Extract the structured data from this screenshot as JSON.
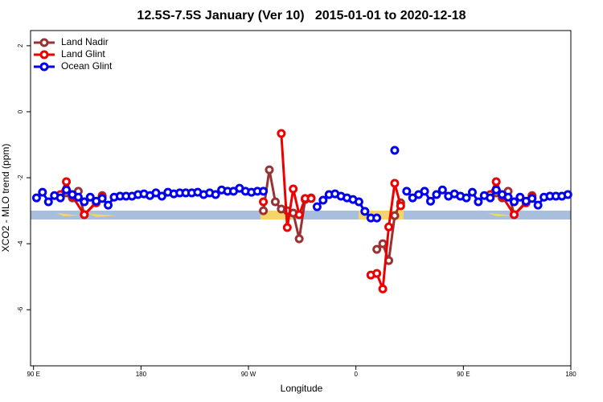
{
  "chart_data": {
    "type": "line",
    "title": "12.5S-7.5S January (Ver 10)   2015-01-01 to 2020-12-18",
    "x_label": "Longitude",
    "y_label": "XCO2 - MLO trend (ppm)",
    "xlim": [
      87.5,
      540
    ],
    "ylim": [
      -7.7,
      2.46
    ],
    "xticks": [
      {
        "value": 90,
        "label": "90 E"
      },
      {
        "value": 180,
        "label": "180"
      },
      {
        "value": 270,
        "label": "90 W"
      },
      {
        "value": 360,
        "label": "0"
      },
      {
        "value": 450,
        "label": "90 E"
      },
      {
        "value": 540,
        "label": "180"
      }
    ],
    "yticks": [
      2,
      0,
      -2,
      -4,
      -6
    ],
    "legend": "topleft",
    "series": [
      {
        "name": "Land Nadir",
        "color": "#993333",
        "x": [
          117.5,
          122.5,
          127.5,
          132.5,
          147.5,
          152.5,
          282.5,
          287.5,
          292.5,
          297.5,
          302.5,
          307.5,
          312.5,
          317.5,
          322.5,
          327.5,
          377.5,
          382.5,
          387.5,
          392.5,
          397.5,
          402.5,
          477.5,
          482.5,
          487.5,
          492.5,
          507.5
        ],
        "values": [
          -2.46,
          -2.61,
          -2.41,
          -3.12,
          -2.54,
          null,
          -3.0,
          -1.76,
          -2.73,
          -2.95,
          -3.0,
          -3.07,
          -3.85,
          -2.66,
          -2.61,
          null,
          -4.17,
          -4.0,
          -4.51,
          -3.15,
          -2.76,
          null,
          -2.46,
          -2.61,
          -2.41,
          -3.12,
          -2.54
        ]
      },
      {
        "name": "Land Glint",
        "color": "#ee0000",
        "x": [
          112.5,
          117.5,
          122.5,
          132.5,
          142.5,
          147.5,
          152.5,
          282.5,
          287.5,
          297.5,
          302.5,
          307.5,
          312.5,
          317.5,
          322.5,
          327.5,
          372.5,
          377.5,
          382.5,
          387.5,
          392.5,
          397.5,
          402.5,
          472.5,
          477.5,
          482.5,
          492.5,
          502.5,
          507.5
        ],
        "values": [
          -2.51,
          -2.12,
          -2.56,
          -3.12,
          -2.76,
          -2.59,
          null,
          -2.73,
          null,
          -0.66,
          -3.51,
          -2.34,
          -3.12,
          -2.63,
          -2.63,
          null,
          -4.95,
          -4.9,
          -5.37,
          -3.49,
          -2.17,
          -2.85,
          null,
          -2.51,
          -2.12,
          -2.56,
          -3.12,
          -2.76,
          -2.59
        ]
      },
      {
        "name": "Ocean Glint",
        "color": "#0000ee",
        "x": [
          92.5,
          97.5,
          102.5,
          107.5,
          112.5,
          117.5,
          122.5,
          127.5,
          132.5,
          137.5,
          142.5,
          147.5,
          152.5,
          157.5,
          162.5,
          167.5,
          172.5,
          177.5,
          182.5,
          187.5,
          192.5,
          197.5,
          202.5,
          207.5,
          212.5,
          217.5,
          222.5,
          227.5,
          232.5,
          237.5,
          242.5,
          247.5,
          252.5,
          257.5,
          262.5,
          267.5,
          272.5,
          277.5,
          282.5,
          287.5,
          327.5,
          332.5,
          337.5,
          342.5,
          347.5,
          352.5,
          357.5,
          362.5,
          367.5,
          372.5,
          377.5,
          387.5,
          392.5,
          397.5,
          402.5,
          407.5,
          412.5,
          417.5,
          422.5,
          427.5,
          432.5,
          437.5,
          442.5,
          447.5,
          452.5,
          457.5,
          462.5,
          467.5,
          472.5,
          477.5,
          482.5,
          487.5,
          492.5,
          497.5,
          502.5,
          507.5,
          512.5,
          517.5,
          522.5,
          527.5,
          532.5,
          537.5
        ],
        "values": [
          -2.61,
          -2.44,
          -2.73,
          -2.54,
          -2.61,
          -2.37,
          -2.51,
          -2.59,
          -2.73,
          -2.59,
          -2.71,
          -2.63,
          -2.83,
          -2.59,
          -2.56,
          -2.56,
          -2.56,
          -2.51,
          -2.49,
          -2.54,
          -2.46,
          -2.56,
          -2.44,
          -2.49,
          -2.46,
          -2.46,
          -2.46,
          -2.44,
          -2.51,
          -2.46,
          -2.51,
          -2.37,
          -2.41,
          -2.41,
          -2.32,
          -2.41,
          -2.44,
          -2.41,
          -2.41,
          null,
          -2.88,
          -2.68,
          -2.51,
          -2.49,
          -2.56,
          -2.61,
          -2.66,
          -2.73,
          -3.02,
          -3.22,
          -3.22,
          null,
          -1.17,
          null,
          -2.41,
          -2.61,
          -2.51,
          -2.41,
          -2.71,
          -2.51,
          -2.37,
          -2.56,
          -2.49,
          -2.56,
          -2.61,
          -2.44,
          -2.73,
          -2.54,
          -2.61,
          -2.37,
          -2.51,
          -2.59,
          -2.73,
          -2.59,
          -2.71,
          -2.63,
          -2.83,
          -2.59,
          -2.56,
          -2.56,
          -2.56,
          -2.51
        ]
      }
    ]
  }
}
